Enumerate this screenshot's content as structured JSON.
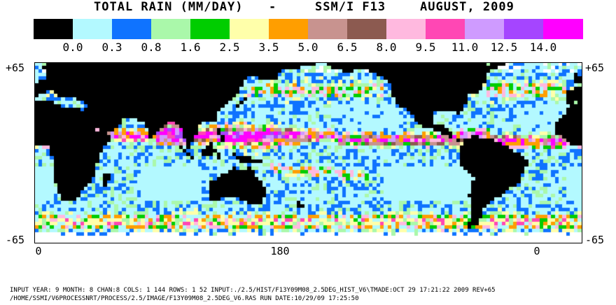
{
  "header": {
    "title_left": "TOTAL RAIN (MM/DAY)",
    "title_sep": "-",
    "title_sensor": "SSM/I F13",
    "title_date": "AUGUST, 2009"
  },
  "legend": {
    "labels": [
      "0.0",
      "0.3",
      "0.8",
      "1.6",
      "2.5",
      "3.5",
      "5.0",
      "6.5",
      "8.0",
      "9.5",
      "11.0",
      "12.5",
      "14.0"
    ],
    "colors": [
      "#000000",
      "#b3f9ff",
      "#0f73ff",
      "#aaf8aa",
      "#00cd00",
      "#ffffaa",
      "#ff9e00",
      "#c8938f",
      "#8c5a50",
      "#ffb9df",
      "#ff47b4",
      "#cf9bff",
      "#a545ff",
      "#ff00ff"
    ]
  },
  "map": {
    "lat_top": "+65",
    "lat_bottom": "-65",
    "lon_labels": [
      "0",
      "180",
      "0"
    ],
    "land_color": "#000000",
    "nodata_color": "#ffffff",
    "ocean_base_color": "#b3f9ff"
  },
  "footer": {
    "line1": "INPUT YEAR: 9 MONTH: 8 CHAN:8 COLS:   1 144 ROWS:   1 52 INPUT:./2.5/HIST/F13Y09M08_2.5DEG_HIST_V6\\TMADE:OCT 29 17:21:22 2009 REV+65",
    "line2": "/HOME/SSMI/V6PROCESSNRT/PROCESS/2.5/IMAGE/F13Y09M08_2.5DEG_V6.RAS  RUN DATE:10/29/09 17:25:50"
  }
}
